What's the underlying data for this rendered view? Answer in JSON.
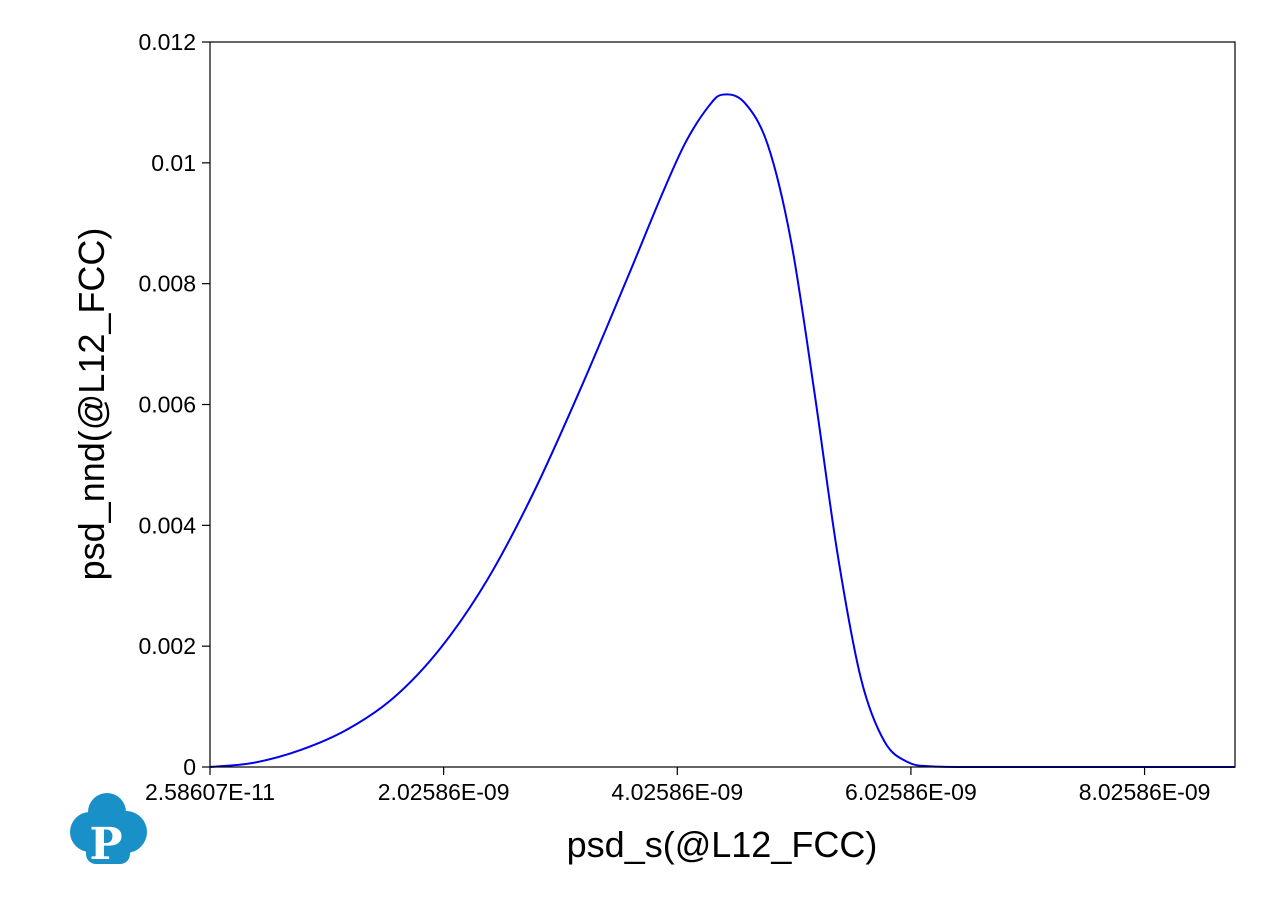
{
  "chart_data": {
    "type": "line",
    "xlabel": "psd_s(@L12_FCC)",
    "ylabel": "psd_nnd(@L12_FCC)",
    "xlim": [
      2.58607e-11,
      8.8e-09
    ],
    "ylim": [
      0,
      0.012
    ],
    "xticks": [
      2.58607e-11,
      2.02586e-09,
      4.02586e-09,
      6.02586e-09,
      8.02586e-09
    ],
    "xtick_labels": [
      "2.58607E-11",
      "2.02586E-09",
      "4.02586E-09",
      "6.02586E-09",
      "8.02586E-09"
    ],
    "yticks": [
      0,
      0.002,
      0.004,
      0.006,
      0.008,
      0.01,
      0.012
    ],
    "ytick_labels": [
      "0",
      "0.002",
      "0.004",
      "0.006",
      "0.008",
      "0.01",
      "0.012"
    ],
    "grid": false,
    "series": [
      {
        "color": "#0000ee",
        "x": [
          2.58607e-11,
          4e-10,
          8e-10,
          1.2e-09,
          1.6e-09,
          2e-09,
          2.4e-09,
          2.8e-09,
          3.2e-09,
          3.6e-09,
          3.9e-09,
          4.1e-09,
          4.3e-09,
          4.42e-09,
          4.6e-09,
          4.8e-09,
          5e-09,
          5.2e-09,
          5.4e-09,
          5.6e-09,
          5.8e-09,
          6e-09,
          6.2e-09,
          6.5e-09,
          7e-09,
          7.5e-09,
          8e-09,
          8.8e-09
        ],
        "y": [
          0.0,
          7e-05,
          0.00028,
          0.00062,
          0.00115,
          0.00197,
          0.0031,
          0.00456,
          0.00627,
          0.0081,
          0.0095,
          0.01035,
          0.01095,
          0.01113,
          0.011,
          0.0103,
          0.0087,
          0.0062,
          0.0035,
          0.00145,
          0.00042,
          8e-05,
          1e-05,
          0.0,
          0.0,
          0.0,
          0.0,
          0.0
        ]
      }
    ]
  },
  "logo": {
    "letter": "P",
    "color": "#1a90c8"
  }
}
